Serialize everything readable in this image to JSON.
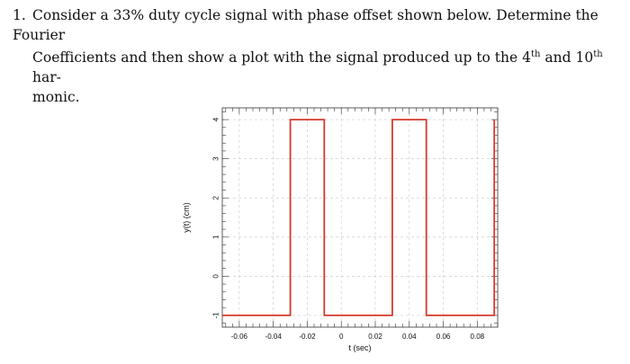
{
  "problem": {
    "number": "1.",
    "line1": "Consider a 33% duty cycle signal with phase offset shown below. Determine the Fourier",
    "line2_pre": "Coefficients and then show a plot with the signal produced up to the 4",
    "line2_sup1": "th",
    "line2_mid": " and 10",
    "line2_sup2": "th",
    "line2_post": " har-",
    "line3": "monic."
  },
  "colors": {
    "signal": "#d23a2c",
    "grid": "#cfcfcf",
    "axis": "#333333"
  },
  "chart_data": {
    "type": "line",
    "title": "",
    "xlabel": "t (sec)",
    "ylabel": "y(t) (cm)",
    "xlim": [
      -0.07,
      0.092
    ],
    "ylim": [
      -1.3,
      4.3
    ],
    "xticks": [
      -0.06,
      -0.04,
      -0.02,
      0,
      0.02,
      0.04,
      0.06,
      0.08
    ],
    "xtick_labels": [
      "-0.06",
      "-0.04",
      "-0.02",
      "0",
      "0.02",
      "0.04",
      "0.06",
      "0.08"
    ],
    "yticks": [
      -1,
      0,
      1,
      2,
      3,
      4
    ],
    "ytick_labels": [
      "-1",
      "0",
      "1",
      "2",
      "3",
      "4"
    ],
    "grid": true,
    "series": [
      {
        "x": [
          -0.07,
          -0.03,
          -0.03,
          -0.01,
          -0.01,
          0.03,
          0.03,
          0.05,
          0.05,
          0.09,
          0.09
        ],
        "y": [
          -1,
          -1,
          4,
          4,
          -1,
          -1,
          4,
          4,
          -1,
          -1,
          4
        ]
      }
    ]
  }
}
